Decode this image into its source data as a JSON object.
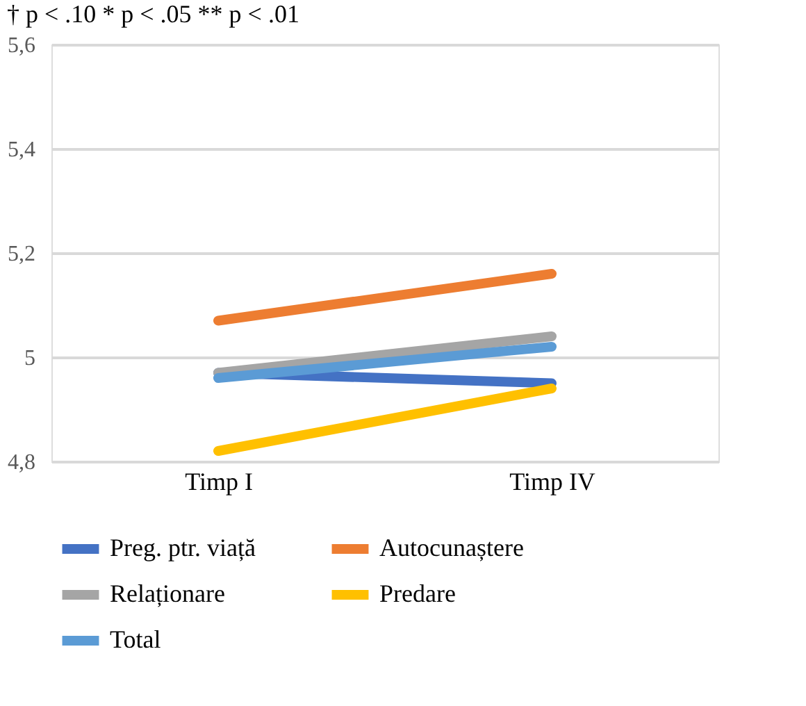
{
  "chart_data": {
    "type": "line",
    "annotations": [
      "† p < .10   * p < .05   ** p < .01"
    ],
    "categories": [
      "Timp I",
      "Timp IV"
    ],
    "series": [
      {
        "name": "Preg. ptr. viață",
        "color": "#4472c4",
        "values": [
          4.97,
          4.95
        ]
      },
      {
        "name": "Autocunaștere",
        "color": "#ed7d31",
        "values": [
          5.07,
          5.16
        ]
      },
      {
        "name": "Relaționare",
        "color": "#a5a5a5",
        "values": [
          4.97,
          5.04
        ]
      },
      {
        "name": "Predare",
        "color": "#ffc000",
        "values": [
          4.82,
          4.94
        ]
      },
      {
        "name": "Total",
        "color": "#5b9bd5",
        "values": [
          4.96,
          5.02
        ]
      }
    ],
    "ylim": [
      4.8,
      5.6
    ],
    "yticks": [
      {
        "value": 4.8,
        "label": "4,8"
      },
      {
        "value": 5.0,
        "label": "5"
      },
      {
        "value": 5.2,
        "label": "5,2"
      },
      {
        "value": 5.4,
        "label": "5,4"
      },
      {
        "value": 5.6,
        "label": "5,6"
      }
    ],
    "grid": "y",
    "legend": "bottom",
    "marker": "none",
    "line_style": "solid"
  }
}
